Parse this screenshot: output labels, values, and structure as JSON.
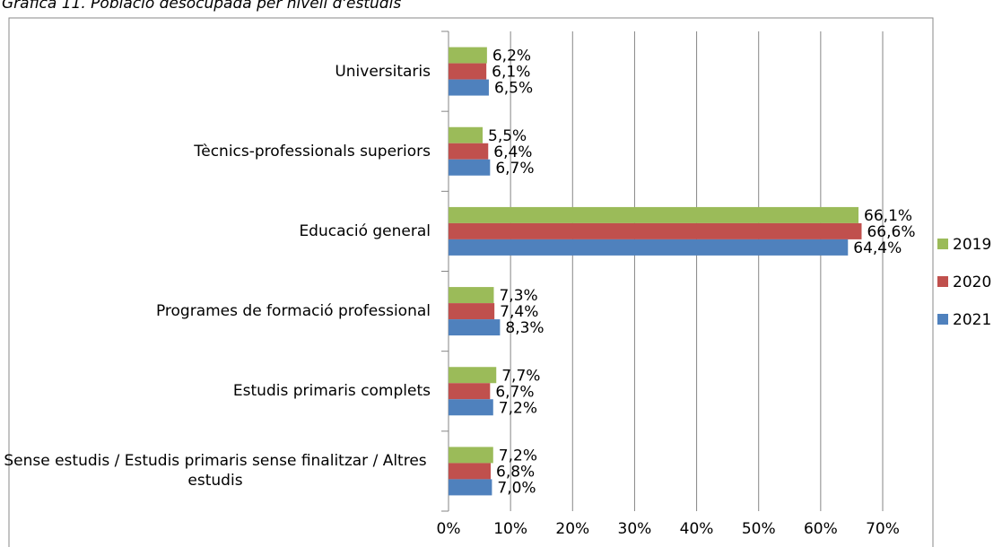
{
  "chart_data": {
    "type": "bar",
    "orientation": "horizontal",
    "title": "Gràfica 11. Població desocupada per nivell d'estudis",
    "categories": [
      "Universitaris",
      "Tècnics-professionals superiors",
      "Educació general",
      "Programes de formació professional",
      "Estudis primaris complets",
      "Sense estudis / Estudis primaris sense finalitzar / Altres estudis"
    ],
    "series": [
      {
        "name": "2019",
        "color": "#9bbb59",
        "values": [
          6.2,
          5.5,
          66.1,
          7.3,
          7.7,
          7.2
        ],
        "value_labels": [
          "6,2%",
          "5,5%",
          "66,1%",
          "7,3%",
          "7,7%",
          "7,2%"
        ]
      },
      {
        "name": "2020",
        "color": "#c0504d",
        "values": [
          6.1,
          6.4,
          66.6,
          7.4,
          6.7,
          6.8
        ],
        "value_labels": [
          "6,1%",
          "6,4%",
          "66,6%",
          "7,4%",
          "6,7%",
          "6,8%"
        ]
      },
      {
        "name": "2021",
        "color": "#4f81bd",
        "values": [
          6.5,
          6.7,
          64.4,
          8.3,
          7.2,
          7.0
        ],
        "value_labels": [
          "6,5%",
          "6,7%",
          "64,4%",
          "8,3%",
          "7,2%",
          "7,0%"
        ]
      }
    ],
    "xlim": [
      0,
      70
    ],
    "xticks": [
      {
        "value": 0,
        "label": "0%"
      },
      {
        "value": 10,
        "label": "10%"
      },
      {
        "value": 20,
        "label": "20%"
      },
      {
        "value": 30,
        "label": "30%"
      },
      {
        "value": 40,
        "label": "40%"
      },
      {
        "value": 50,
        "label": "50%"
      },
      {
        "value": 60,
        "label": "60%"
      },
      {
        "value": 70,
        "label": "70%"
      }
    ],
    "grid": true,
    "legend": "right"
  }
}
